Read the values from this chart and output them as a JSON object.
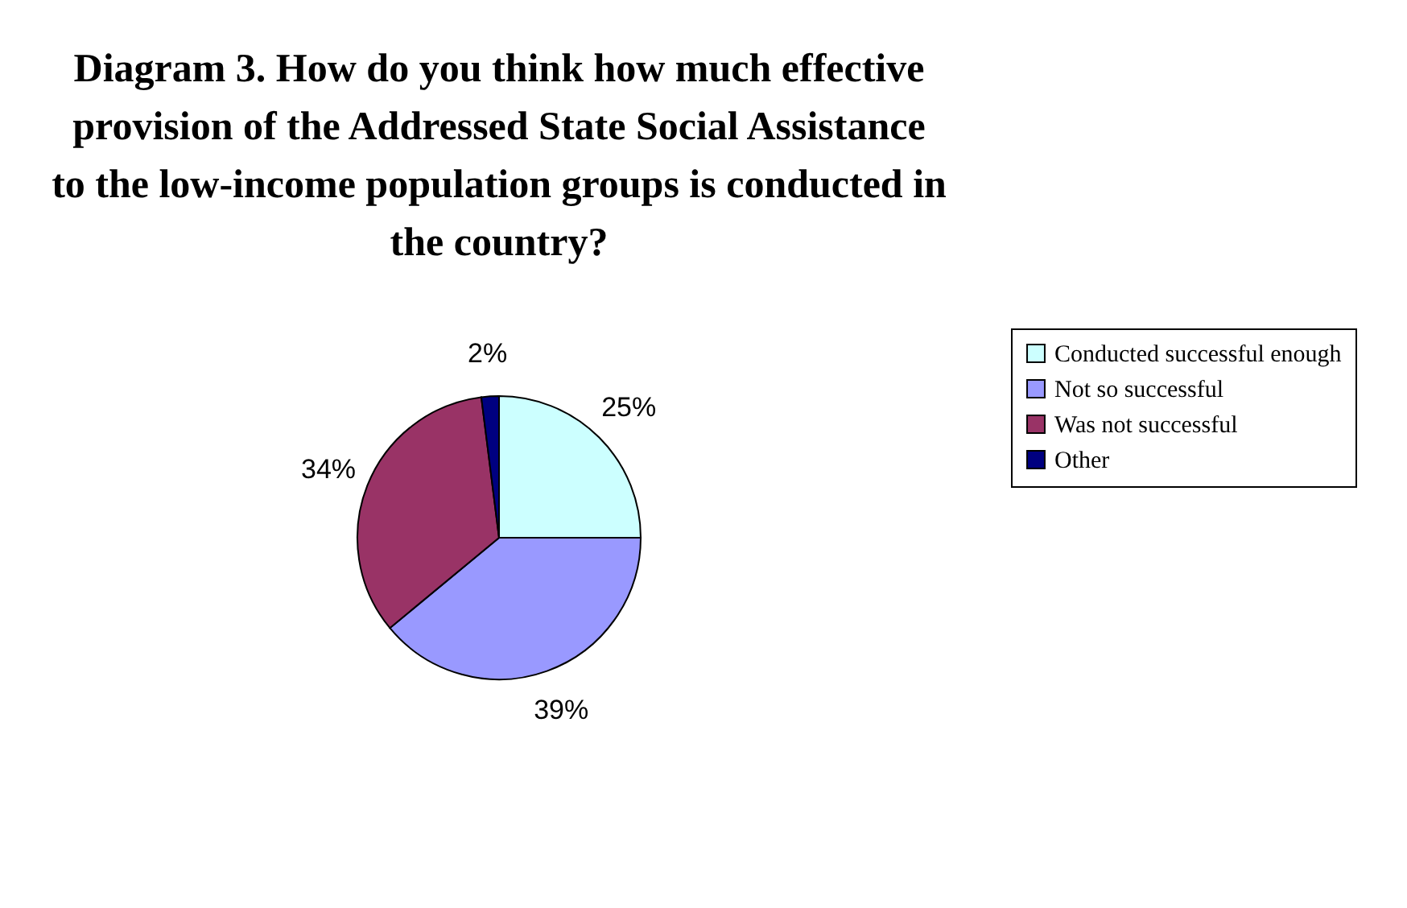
{
  "chart_data": {
    "type": "pie",
    "title": "Diagram 3. How do you think how much effective provision of the Addressed State Social Assistance to the low-income population groups is conducted in the country?",
    "categories": [
      "Conducted successful enough",
      "Not so successful",
      "Was not successful",
      "Other"
    ],
    "values": [
      25,
      39,
      34,
      2
    ],
    "colors": [
      "#ccffff",
      "#9999ff",
      "#993366",
      "#000080"
    ],
    "value_labels": [
      "25%",
      "39%",
      "34%",
      "2%"
    ],
    "legend": "right"
  }
}
